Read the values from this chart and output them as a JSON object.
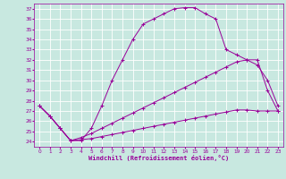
{
  "xlabel": "Windchill (Refroidissement éolien,°C)",
  "background_color": "#c8e8e0",
  "grid_color": "#ffffff",
  "line_color": "#990099",
  "xlim": [
    -0.5,
    23.5
  ],
  "ylim": [
    23.5,
    37.5
  ],
  "xticks": [
    0,
    1,
    2,
    3,
    4,
    5,
    6,
    7,
    8,
    9,
    10,
    11,
    12,
    13,
    14,
    15,
    16,
    17,
    18,
    19,
    20,
    21,
    22,
    23
  ],
  "yticks": [
    24,
    25,
    26,
    27,
    28,
    29,
    30,
    31,
    32,
    33,
    34,
    35,
    36,
    37
  ],
  "line1_x": [
    0,
    1,
    2,
    3,
    4,
    5,
    6,
    7,
    8,
    9,
    10,
    11,
    12,
    13,
    14,
    15,
    16,
    17,
    18,
    19,
    20,
    21,
    22,
    23
  ],
  "line1_y": [
    27.5,
    26.5,
    25.3,
    24.1,
    24.1,
    25.3,
    27.5,
    30.0,
    32.0,
    34.0,
    35.5,
    36.0,
    36.5,
    37.0,
    37.1,
    37.1,
    36.5,
    36.0,
    33.0,
    32.5,
    32.0,
    31.5,
    30.0,
    27.5
  ],
  "line2_x": [
    0,
    1,
    2,
    3,
    4,
    5,
    6,
    7,
    8,
    9,
    10,
    11,
    12,
    13,
    14,
    15,
    16,
    17,
    18,
    19,
    20,
    21,
    22,
    23
  ],
  "line2_y": [
    27.5,
    26.5,
    25.3,
    24.1,
    24.4,
    24.8,
    25.3,
    25.8,
    26.3,
    26.8,
    27.3,
    27.8,
    28.3,
    28.8,
    29.3,
    29.8,
    30.3,
    30.8,
    31.3,
    31.8,
    32.0,
    32.0,
    29.0,
    27.0
  ],
  "line3_x": [
    0,
    1,
    2,
    3,
    4,
    5,
    6,
    7,
    8,
    9,
    10,
    11,
    12,
    13,
    14,
    15,
    16,
    17,
    18,
    19,
    20,
    21,
    22,
    23
  ],
  "line3_y": [
    27.5,
    26.5,
    25.3,
    24.1,
    24.2,
    24.3,
    24.5,
    24.7,
    24.9,
    25.1,
    25.3,
    25.5,
    25.7,
    25.9,
    26.1,
    26.3,
    26.5,
    26.7,
    26.9,
    27.1,
    27.1,
    27.0,
    27.0,
    27.0
  ]
}
